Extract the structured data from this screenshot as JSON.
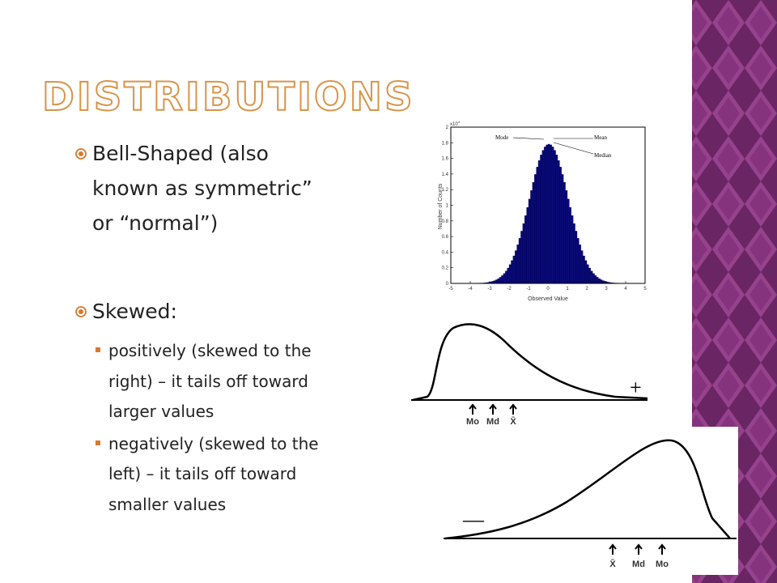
{
  "title": "DISTRIBUTIONS",
  "bullets": [
    {
      "lines": [
        "Bell-Shaped (also",
        "known as symmetric”",
        "or “normal”)"
      ]
    },
    {
      "lines": [
        "Skewed:"
      ],
      "sub": [
        {
          "lines": [
            "positively (skewed to the",
            "right) – it tails off toward",
            "larger values"
          ]
        },
        {
          "lines": [
            "negatively (skewed to the",
            "left) – it tails off toward",
            "smaller values"
          ]
        }
      ]
    }
  ],
  "figures": {
    "histogram": {
      "multiplier": "x10",
      "exponent": "4",
      "y_label": "Number of Counts",
      "x_label": "Observed Value",
      "x_ticks": [
        -5,
        -4,
        -3,
        -2,
        -1,
        0,
        1,
        2,
        3,
        4,
        5
      ],
      "y_ticks": [
        "0",
        "0.2",
        "0.4",
        "0.6",
        "0.8",
        "1",
        "1.2",
        "1.4",
        "1.6",
        "1.8",
        "2"
      ],
      "annotations": [
        "Mode",
        "Mean",
        "Median"
      ]
    },
    "skewed_right": {
      "sign": "+",
      "markers": [
        "Mo",
        "Md",
        "X̄"
      ]
    },
    "skewed_left": {
      "sign": "—",
      "markers": [
        "X̄",
        "Md",
        "Mo"
      ]
    }
  }
}
